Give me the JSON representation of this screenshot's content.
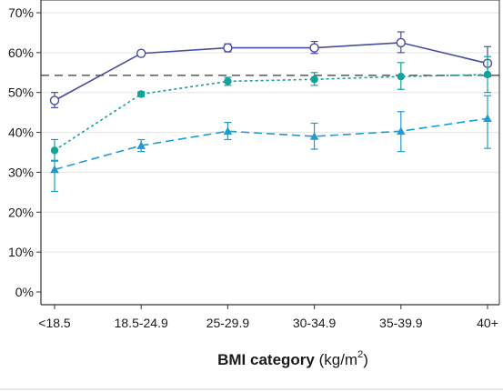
{
  "chart_data": {
    "type": "line",
    "categories": [
      "<18.5",
      "18.5-24.9",
      "25-29.9",
      "30-34.9",
      "35-39.9",
      "40+"
    ],
    "y_ticks": [
      "0%",
      "10%",
      "20%",
      "30%",
      "40%",
      "50%",
      "60%",
      "70%"
    ],
    "ylim": [
      0,
      0.7
    ],
    "xlabel": {
      "bold": "BMI category",
      "unit_open": " (kg/m",
      "unit_sup": "2",
      "unit_close": ")"
    },
    "ylabel": "",
    "grid": "horizontal",
    "reference_line": {
      "value": 0.543,
      "style": "dashed",
      "color": "#666666"
    },
    "series": [
      {
        "marker": "open-circle",
        "line_style": "solid",
        "color": "#4a4d9e",
        "values": [
          0.48,
          0.598,
          0.612,
          0.612,
          0.625,
          0.573
        ],
        "error_low": [
          0.462,
          0.592,
          0.602,
          0.598,
          0.6,
          0.54
        ],
        "error_high": [
          0.5,
          0.604,
          0.622,
          0.628,
          0.652,
          0.615
        ]
      },
      {
        "marker": "filled-circle",
        "line_style": "dotted",
        "color": "#12a39a",
        "values": [
          0.355,
          0.496,
          0.528,
          0.533,
          0.54,
          0.545
        ],
        "error_low": [
          0.328,
          0.49,
          0.518,
          0.518,
          0.508,
          0.5
        ],
        "error_high": [
          0.382,
          0.502,
          0.538,
          0.55,
          0.575,
          0.59
        ]
      },
      {
        "marker": "filled-triangle",
        "line_style": "dashed",
        "color": "#1e9bd0",
        "values": [
          0.307,
          0.367,
          0.403,
          0.39,
          0.403,
          0.435
        ],
        "error_low": [
          0.252,
          0.352,
          0.382,
          0.358,
          0.352,
          0.36
        ],
        "error_high": [
          0.33,
          0.382,
          0.425,
          0.423,
          0.452,
          0.492
        ]
      }
    ]
  }
}
